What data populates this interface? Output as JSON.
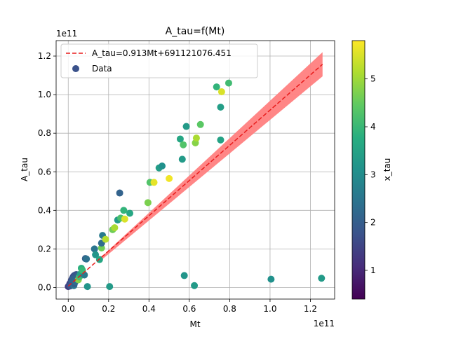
{
  "chart_data": {
    "type": "scatter",
    "title": "A_tau=f(Mt)",
    "xlabel": "Mt",
    "ylabel": "A_tau",
    "x_offset_label": "1e11",
    "y_offset_label": "1e11",
    "xlim": [
      -0.06,
      1.32
    ],
    "ylim": [
      -0.06,
      1.28
    ],
    "x_ticks": [
      0.0,
      0.2,
      0.4,
      0.6,
      0.8,
      1.0,
      1.2
    ],
    "x_tick_labels": [
      "0.0",
      "0.2",
      "0.4",
      "0.6",
      "0.8",
      "1.0",
      "1.2"
    ],
    "y_ticks": [
      0.0,
      0.2,
      0.4,
      0.6,
      0.8,
      1.0,
      1.2
    ],
    "y_tick_labels": [
      "0.0",
      "0.2",
      "0.4",
      "0.6",
      "0.8",
      "1.0",
      "1.2"
    ],
    "grid": true,
    "legend_position": "top-left",
    "legend": {
      "fit_label": "A_tau=0.913Mt+691121076.451",
      "data_label": "Data"
    },
    "fit_line": {
      "slope": 0.913,
      "intercept": 0.00691,
      "x_range": [
        0.0,
        1.26
      ],
      "color": "#e81c1c"
    },
    "confidence_band": {
      "color": "#ff8080",
      "upper": [
        [
          0.15,
          0.145
        ],
        [
          1.26,
          1.22
        ]
      ],
      "lower": [
        [
          0.15,
          0.13
        ],
        [
          1.26,
          1.095
        ]
      ]
    },
    "colorbar": {
      "label": "x_tau",
      "range": [
        0.4,
        5.8
      ],
      "ticks": [
        1,
        2,
        3,
        4,
        5
      ],
      "tick_labels": [
        "1",
        "2",
        "3",
        "4",
        "5"
      ]
    },
    "series": [
      {
        "points": [
          {
            "x": 0.0,
            "y": 0.005,
            "c": 1.3
          },
          {
            "x": 0.005,
            "y": 0.012,
            "c": 1.5
          },
          {
            "x": 0.008,
            "y": 0.02,
            "c": 1.6
          },
          {
            "x": 0.012,
            "y": 0.025,
            "c": 1.4
          },
          {
            "x": 0.015,
            "y": 0.035,
            "c": 1.7
          },
          {
            "x": 0.018,
            "y": 0.042,
            "c": 1.5
          },
          {
            "x": 0.022,
            "y": 0.05,
            "c": 1.8
          },
          {
            "x": 0.026,
            "y": 0.058,
            "c": 1.6
          },
          {
            "x": 0.03,
            "y": 0.062,
            "c": 1.7
          },
          {
            "x": 0.035,
            "y": 0.065,
            "c": 1.9
          },
          {
            "x": 0.04,
            "y": 0.067,
            "c": 1.8
          },
          {
            "x": 0.045,
            "y": 0.06,
            "c": 2.0
          },
          {
            "x": 0.02,
            "y": 0.03,
            "c": 2.2
          },
          {
            "x": 0.025,
            "y": 0.045,
            "c": 2.1
          },
          {
            "x": 0.01,
            "y": 0.008,
            "c": 1.9
          },
          {
            "x": 0.028,
            "y": 0.01,
            "c": 2.5
          },
          {
            "x": 0.03,
            "y": 0.02,
            "c": 2.0
          },
          {
            "x": 0.035,
            "y": 0.03,
            "c": 2.3
          },
          {
            "x": 0.05,
            "y": 0.04,
            "c": 4.8
          },
          {
            "x": 0.055,
            "y": 0.055,
            "c": 4.2
          },
          {
            "x": 0.06,
            "y": 0.07,
            "c": 3.5
          },
          {
            "x": 0.065,
            "y": 0.1,
            "c": 3.8
          },
          {
            "x": 0.08,
            "y": 0.065,
            "c": 2.6
          },
          {
            "x": 0.07,
            "y": 0.09,
            "c": 4.0
          },
          {
            "x": 0.085,
            "y": 0.15,
            "c": 2.0
          },
          {
            "x": 0.09,
            "y": 0.148,
            "c": 2.4
          },
          {
            "x": 0.095,
            "y": 0.005,
            "c": 3.2
          },
          {
            "x": 0.13,
            "y": 0.2,
            "c": 2.5
          },
          {
            "x": 0.135,
            "y": 0.17,
            "c": 3.2
          },
          {
            "x": 0.155,
            "y": 0.145,
            "c": 3.6
          },
          {
            "x": 0.165,
            "y": 0.205,
            "c": 4.6
          },
          {
            "x": 0.165,
            "y": 0.23,
            "c": 2.3
          },
          {
            "x": 0.17,
            "y": 0.27,
            "c": 2.6
          },
          {
            "x": 0.185,
            "y": 0.25,
            "c": 5.2
          },
          {
            "x": 0.205,
            "y": 0.005,
            "c": 3.3
          },
          {
            "x": 0.22,
            "y": 0.3,
            "c": 4.6
          },
          {
            "x": 0.23,
            "y": 0.31,
            "c": 5.1
          },
          {
            "x": 0.245,
            "y": 0.35,
            "c": 3.3
          },
          {
            "x": 0.255,
            "y": 0.49,
            "c": 2.1
          },
          {
            "x": 0.26,
            "y": 0.36,
            "c": 4.2
          },
          {
            "x": 0.275,
            "y": 0.4,
            "c": 3.9
          },
          {
            "x": 0.28,
            "y": 0.355,
            "c": 5.5
          },
          {
            "x": 0.305,
            "y": 0.385,
            "c": 3.6
          },
          {
            "x": 0.395,
            "y": 0.44,
            "c": 4.7
          },
          {
            "x": 0.405,
            "y": 0.545,
            "c": 4.3
          },
          {
            "x": 0.425,
            "y": 0.545,
            "c": 5.6
          },
          {
            "x": 0.45,
            "y": 0.62,
            "c": 3.4
          },
          {
            "x": 0.465,
            "y": 0.63,
            "c": 3.1
          },
          {
            "x": 0.5,
            "y": 0.565,
            "c": 5.7
          },
          {
            "x": 0.555,
            "y": 0.77,
            "c": 3.6
          },
          {
            "x": 0.565,
            "y": 0.665,
            "c": 3.3
          },
          {
            "x": 0.57,
            "y": 0.74,
            "c": 4.3
          },
          {
            "x": 0.585,
            "y": 0.835,
            "c": 3.3
          },
          {
            "x": 0.575,
            "y": 0.062,
            "c": 3.2
          },
          {
            "x": 0.625,
            "y": 0.01,
            "c": 3.3
          },
          {
            "x": 0.63,
            "y": 0.75,
            "c": 4.8
          },
          {
            "x": 0.635,
            "y": 0.775,
            "c": 5.1
          },
          {
            "x": 0.655,
            "y": 0.845,
            "c": 4.4
          },
          {
            "x": 0.735,
            "y": 1.04,
            "c": 3.9
          },
          {
            "x": 0.755,
            "y": 0.935,
            "c": 3.4
          },
          {
            "x": 0.76,
            "y": 1.015,
            "c": 5.5
          },
          {
            "x": 0.755,
            "y": 0.765,
            "c": 3.5
          },
          {
            "x": 0.795,
            "y": 1.06,
            "c": 4.1
          },
          {
            "x": 1.005,
            "y": 0.043,
            "c": 3.1
          },
          {
            "x": 1.255,
            "y": 0.048,
            "c": 3.3
          }
        ]
      }
    ]
  }
}
